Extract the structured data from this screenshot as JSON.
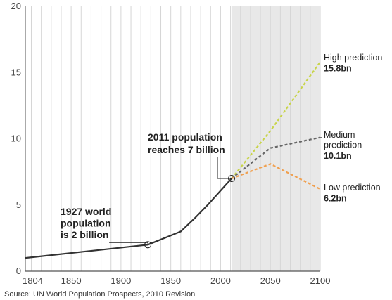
{
  "chart_data": {
    "type": "line",
    "x_range": [
      1804,
      2100
    ],
    "y_range": [
      0,
      20
    ],
    "x_ticks": [
      1804,
      1850,
      1900,
      1950,
      2000,
      2050,
      2100
    ],
    "y_ticks": [
      0,
      5,
      10,
      15,
      20
    ],
    "grid": "vertical lines every 10 years",
    "projection_shading_from": 2011,
    "series": [
      {
        "id": "historical",
        "color": "#333333",
        "dashed": false,
        "points": [
          [
            1804,
            1.0
          ],
          [
            1927,
            2.0
          ],
          [
            1960,
            3.0
          ],
          [
            1974,
            4.0
          ],
          [
            1987,
            5.0
          ],
          [
            1999,
            6.0
          ],
          [
            2011,
            7.0
          ]
        ]
      },
      {
        "id": "high",
        "color": "#c8d44a",
        "dashed": true,
        "points": [
          [
            2011,
            7.0
          ],
          [
            2050,
            10.6
          ],
          [
            2100,
            15.8
          ]
        ]
      },
      {
        "id": "medium",
        "color": "#666666",
        "dashed": true,
        "points": [
          [
            2011,
            7.0
          ],
          [
            2050,
            9.3
          ],
          [
            2100,
            10.1
          ]
        ]
      },
      {
        "id": "low",
        "color": "#f0a050",
        "dashed": true,
        "points": [
          [
            2011,
            7.0
          ],
          [
            2050,
            8.1
          ],
          [
            2100,
            6.2
          ]
        ]
      }
    ],
    "annotations": [
      {
        "id": "ann-1927",
        "x": 1927,
        "y": 2.0,
        "lines": [
          "1927 world",
          "population",
          "is 2 billion"
        ]
      },
      {
        "id": "ann-2011",
        "x": 2011,
        "y": 7.0,
        "lines": [
          "2011 population",
          "reaches 7 billion"
        ]
      }
    ],
    "legend": [
      {
        "series": "high",
        "lines": [
          "High prediction"
        ],
        "value": "15.8bn"
      },
      {
        "series": "medium",
        "lines": [
          "Medium",
          "prediction"
        ],
        "value": "10.1bn"
      },
      {
        "series": "low",
        "lines": [
          "Low prediction"
        ],
        "value": "6.2bn"
      }
    ],
    "source": "Source: UN World Population Prospects, 2010 Revision"
  }
}
